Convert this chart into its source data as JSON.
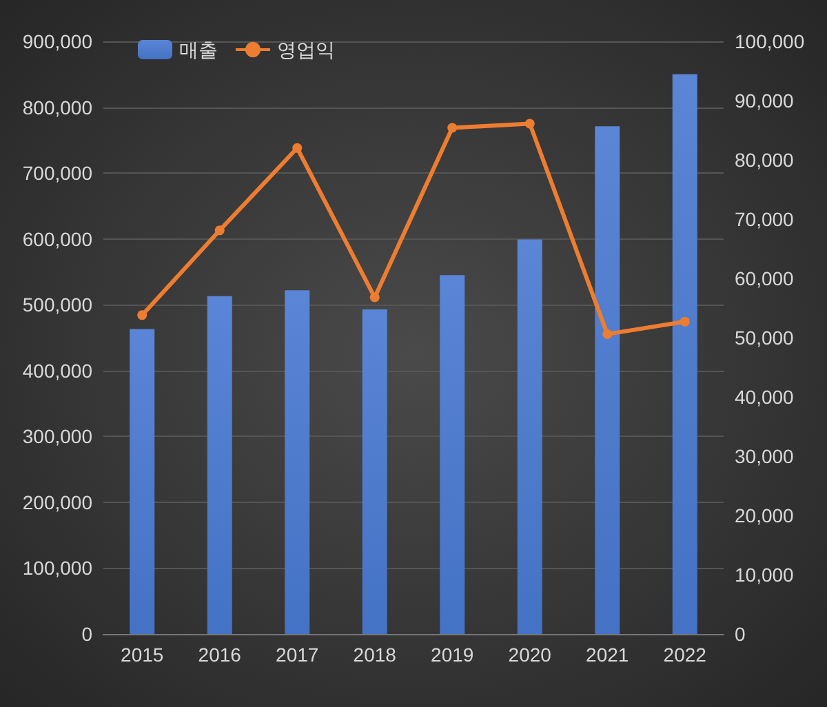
{
  "chart_data": {
    "type": "bar",
    "categories": [
      "2015",
      "2016",
      "2017",
      "2018",
      "2019",
      "2020",
      "2021",
      "2022"
    ],
    "series": [
      {
        "name": "매출",
        "color": "#4472c4",
        "values": [
          463000,
          513000,
          522000,
          493000,
          545000,
          599000,
          771000,
          850000
        ]
      },
      {
        "name": "영업익",
        "type": "line",
        "axis": "y2",
        "color": "#ed7d31",
        "values": [
          53800,
          68100,
          82000,
          56800,
          85400,
          86100,
          50600,
          52700
        ]
      }
    ],
    "ylim": [
      0,
      900000
    ],
    "yticks": [
      0,
      {
        "value": 100000,
        "label": "100,000"
      },
      {
        "value": 200000,
        "label": "200,000"
      },
      {
        "value": 300000,
        "label": "300,000"
      },
      {
        "value": 400000,
        "label": "400,000"
      },
      {
        "value": 500000,
        "label": "500,000"
      },
      {
        "value": 600000,
        "label": "600,000"
      },
      {
        "value": 700000,
        "label": "700,000"
      },
      {
        "value": 800000,
        "label": "800,000"
      },
      {
        "value": 900000,
        "label": "900,000"
      }
    ],
    "y2lim": [
      0,
      100000
    ],
    "y2ticks": [
      0,
      {
        "value": 10000,
        "label": "10,000"
      },
      {
        "value": 20000,
        "label": "20,000"
      },
      {
        "value": 30000,
        "label": "30,000"
      },
      {
        "value": 40000,
        "label": "40,000"
      },
      {
        "value": 50000,
        "label": "50,000"
      },
      {
        "value": 60000,
        "label": "60,000"
      },
      {
        "value": 70000,
        "label": "70,000"
      },
      {
        "value": 80000,
        "label": "80,000"
      },
      {
        "value": 90000,
        "label": "90,000"
      },
      {
        "value": 100000,
        "label": "100,000"
      }
    ],
    "grid": "y",
    "legend": "top left",
    "marker": "circle",
    "line_style": "solid"
  }
}
